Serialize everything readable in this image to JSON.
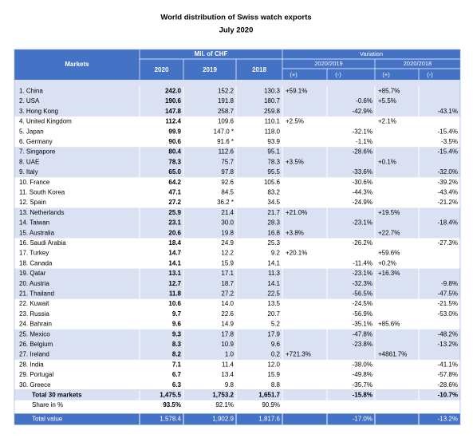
{
  "header": {
    "title": "World distribution of Swiss watch exports",
    "subtitle": "July 2020"
  },
  "table": {
    "columns": {
      "markets": "Markets",
      "mil": "Mil. of CHF",
      "variation": "Variation",
      "years": [
        "2020",
        "2019",
        "2018"
      ],
      "periods": [
        "2020/2019",
        "2020/2018"
      ],
      "signs": [
        "(+)",
        "(-)",
        "(+)",
        "(-)"
      ]
    },
    "rows": [
      [
        "1. China",
        "242.0",
        "152.2",
        "130.3",
        "+59.1%",
        null,
        "+85.7%",
        null
      ],
      [
        "2. USA",
        "190.6",
        "191.8",
        "180.7",
        null,
        "-0.6%",
        "+5.5%",
        null
      ],
      [
        "3. Hong Kong",
        "147.8",
        "258.7",
        "259.8",
        null,
        "-42.9%",
        null,
        "-43.1%"
      ],
      [
        "4. United Kingdom",
        "112.4",
        "109.6",
        "110.1",
        "+2.5%",
        null,
        "+2.1%",
        null
      ],
      [
        "5. Japan",
        "99.9",
        "147.0 *",
        "118.0",
        null,
        "-32.1%",
        null,
        "-15.4%"
      ],
      [
        "6. Germany",
        "90.6",
        "91.6 *",
        "93.9",
        null,
        "-1.1%",
        null,
        "-3.5%"
      ],
      [
        "7. Singapore",
        "80.4",
        "112.6",
        "95.1",
        null,
        "-28.6%",
        null,
        "-15.4%"
      ],
      [
        "8. UAE",
        "78.3",
        "75.7",
        "78.3",
        "+3.5%",
        null,
        "+0.1%",
        null
      ],
      [
        "9. Italy",
        "65.0",
        "97.8",
        "95.5",
        null,
        "-33.6%",
        null,
        "-32.0%"
      ],
      [
        "10. France",
        "64.2",
        "92.6",
        "105.6",
        null,
        "-30.6%",
        null,
        "-39.2%"
      ],
      [
        "11. South Korea",
        "47.1",
        "84.5",
        "83.2",
        null,
        "-44.3%",
        null,
        "-43.4%"
      ],
      [
        "12. Spain",
        "27.2",
        "36.2 *",
        "34.5",
        null,
        "-24.9%",
        null,
        "-21.2%"
      ],
      [
        "13. Netherlands",
        "25.9",
        "21.4",
        "21.7",
        "+21.0%",
        null,
        "+19.5%",
        null
      ],
      [
        "14. Taiwan",
        "23.1",
        "30.0",
        "28.3",
        null,
        "-23.1%",
        null,
        "-18.4%"
      ],
      [
        "15. Australia",
        "20.6",
        "19.8",
        "16.8",
        "+3.8%",
        null,
        "+22.7%",
        null
      ],
      [
        "16. Saudi Arabia",
        "18.4",
        "24.9",
        "25.3",
        null,
        "-26.2%",
        null,
        "-27.3%"
      ],
      [
        "17. Turkey",
        "14.7",
        "12.2",
        "9.2",
        "+20.1%",
        null,
        "+59.6%",
        null
      ],
      [
        "18. Canada",
        "14.1",
        "15.9",
        "14.1",
        null,
        "-11.4%",
        "+0.2%",
        null
      ],
      [
        "19. Qatar",
        "13.1",
        "17.1",
        "11.3",
        null,
        "-23.1%",
        "+16.3%",
        null
      ],
      [
        "20. Austria",
        "12.7",
        "18.7",
        "14.1",
        null,
        "-32.3%",
        null,
        "-9.8%"
      ],
      [
        "21. Thailand",
        "11.8",
        "27.2",
        "22.5",
        null,
        "-56.5%",
        null,
        "-47.5%"
      ],
      [
        "22. Kuwait",
        "10.6",
        "14.0",
        "13.5",
        null,
        "-24.5%",
        null,
        "-21.5%"
      ],
      [
        "23. Russia",
        "9.7",
        "22.6",
        "20.7",
        null,
        "-56.9%",
        null,
        "-53.0%"
      ],
      [
        "24. Bahrain",
        "9.6",
        "14.9",
        "5.2",
        null,
        "-35.1%",
        "+85.6%",
        null
      ],
      [
        "25. Mexico",
        "9.3",
        "17.8",
        "17.9",
        null,
        "-47.8%",
        null,
        "-48.2%"
      ],
      [
        "26. Belgium",
        "8.3",
        "10.9",
        "9.6",
        null,
        "-23.8%",
        null,
        "-13.2%"
      ],
      [
        "27. Ireland",
        "8.2",
        "1.0",
        "0.2",
        "+721.3%",
        null,
        "+4861.7%",
        null
      ],
      [
        "28. India",
        "7.1",
        "11.4",
        "12.0",
        null,
        "-38.0%",
        null,
        "-41.1%"
      ],
      [
        "29. Portugal",
        "6.7",
        "13.4",
        "15.9",
        null,
        "-49.8%",
        null,
        "-57.8%"
      ],
      [
        "30. Greece",
        "6.3",
        "9.8",
        "8.8",
        null,
        "-35.7%",
        null,
        "-28.6%"
      ]
    ],
    "total": [
      "Total 30 markets",
      "1,475.5",
      "1,753.2",
      "1,651.7",
      null,
      "-15.8%",
      null,
      "-10.7%"
    ],
    "share": [
      "Share in %",
      "93.5%",
      "92.1%",
      "90.9%",
      null,
      null,
      null,
      null
    ],
    "total_value": [
      "Total value",
      "1,578.4",
      "1,902.9",
      "1,817.6",
      null,
      "-17.0%",
      null,
      "-13.2%"
    ]
  }
}
